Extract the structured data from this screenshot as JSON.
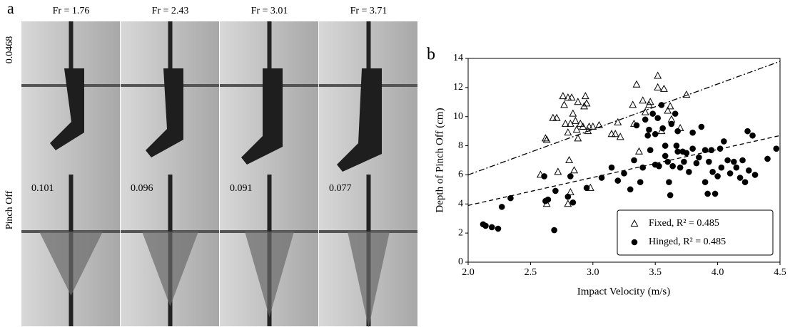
{
  "panel_a": {
    "label": "a",
    "columns": [
      "Fr = 1.76",
      "Fr = 2.43",
      "Fr = 3.01",
      "Fr = 3.71"
    ],
    "rows": [
      "0.0468",
      "Pinch Off"
    ],
    "times": [
      "0.101",
      "0.096",
      "0.091",
      "0.077"
    ]
  },
  "chart_data": {
    "type": "scatter",
    "panel_label": "b",
    "xlabel": "Impact Velocity (m/s)",
    "ylabel": "Depth of Pinch Off (cm)",
    "xlim": [
      2.0,
      4.5
    ],
    "ylim": [
      0,
      14
    ],
    "xticks": [
      {
        "value": 2,
        "label": "2.0"
      },
      {
        "value": 2.5,
        "label": "2.5"
      },
      {
        "value": 3,
        "label": "3.0"
      },
      {
        "value": 3.5,
        "label": "3.5"
      },
      {
        "value": 4,
        "label": "4.0"
      },
      {
        "value": 4.5,
        "label": "4.5"
      }
    ],
    "yticks": [
      0,
      2,
      4,
      6,
      8,
      10,
      12,
      14
    ],
    "legend": "lower right",
    "series": [
      {
        "name": "Fixed, R² = 0.485",
        "marker": "triangle",
        "color": "#000000",
        "x": [
          2.62,
          2.63,
          2.58,
          2.63,
          2.68,
          2.71,
          2.72,
          2.76,
          2.77,
          2.78,
          2.8,
          2.8,
          2.81,
          2.82,
          2.83,
          2.84,
          2.85,
          2.86,
          2.87,
          2.88,
          2.88,
          2.9,
          2.92,
          2.93,
          2.94,
          2.95,
          2.96,
          2.97,
          2.98,
          3.0,
          2.82,
          2.8,
          3.05,
          3.15,
          3.18,
          3.2,
          3.22,
          3.32,
          3.33,
          3.35,
          3.37,
          3.4,
          3.42,
          3.45,
          3.46,
          3.52,
          3.52,
          3.55,
          3.57,
          3.6,
          3.62,
          3.7,
          3.75,
          3.63
        ],
        "values": [
          8.5,
          8.4,
          6.0,
          4.0,
          9.9,
          9.9,
          6.2,
          11.4,
          10.8,
          9.5,
          11.3,
          8.9,
          7.0,
          9.5,
          11.3,
          10.2,
          6.3,
          9.7,
          9.1,
          11.0,
          8.5,
          9.5,
          9.3,
          10.7,
          11.4,
          10.9,
          9.0,
          9.3,
          5.1,
          9.3,
          4.8,
          4.0,
          9.4,
          8.8,
          8.8,
          9.6,
          8.6,
          10.8,
          9.5,
          12.2,
          7.6,
          11.1,
          10.3,
          10.8,
          11.0,
          12.8,
          12.0,
          9.0,
          11.9,
          10.4,
          10.7,
          9.2,
          11.5,
          9.8
        ]
      },
      {
        "name": "Hinged, R² = 0.485",
        "marker": "circle",
        "color": "#000000",
        "x": [
          2.12,
          2.14,
          2.19,
          2.24,
          2.27,
          2.34,
          2.61,
          2.62,
          2.64,
          2.69,
          2.7,
          2.8,
          2.82,
          2.84,
          2.95,
          3.07,
          3.15,
          3.2,
          3.25,
          3.3,
          3.33,
          3.35,
          3.38,
          3.4,
          3.42,
          3.44,
          3.45,
          3.46,
          3.48,
          3.5,
          3.5,
          3.52,
          3.53,
          3.55,
          3.56,
          3.58,
          3.58,
          3.6,
          3.61,
          3.62,
          3.63,
          3.64,
          3.66,
          3.67,
          3.68,
          3.68,
          3.7,
          3.72,
          3.73,
          3.75,
          3.77,
          3.8,
          3.8,
          3.83,
          3.85,
          3.87,
          3.9,
          3.9,
          3.92,
          3.93,
          3.95,
          3.96,
          3.98,
          4.0,
          4.02,
          4.03,
          4.05,
          4.08,
          4.1,
          4.13,
          4.15,
          4.18,
          4.2,
          4.22,
          4.24,
          4.25,
          4.28,
          4.3,
          4.4,
          4.47
        ],
        "values": [
          2.6,
          2.5,
          2.4,
          2.3,
          3.8,
          4.4,
          5.9,
          4.2,
          4.3,
          2.2,
          4.9,
          4.5,
          5.9,
          4.1,
          5.1,
          5.8,
          6.5,
          5.6,
          6.1,
          5.0,
          7.0,
          9.4,
          5.5,
          6.5,
          9.8,
          8.7,
          9.1,
          7.7,
          10.2,
          8.8,
          6.7,
          9.9,
          6.6,
          10.8,
          9.2,
          8.0,
          7.3,
          6.9,
          5.5,
          4.6,
          9.5,
          6.6,
          10.2,
          8.0,
          7.6,
          9.0,
          6.5,
          7.6,
          6.9,
          7.5,
          6.2,
          7.8,
          8.9,
          6.8,
          7.2,
          9.3,
          7.7,
          5.5,
          4.7,
          6.9,
          7.7,
          6.2,
          4.7,
          5.9,
          7.8,
          6.5,
          8.3,
          7.0,
          6.1,
          6.9,
          6.5,
          5.8,
          7.0,
          5.5,
          9.0,
          6.3,
          8.7,
          6.0,
          7.1,
          7.8
        ]
      }
    ],
    "trend_lines": [
      {
        "style": "dashdot",
        "x": [
          2.0,
          4.5
        ],
        "values": [
          6.0,
          13.8
        ]
      },
      {
        "style": "dashed",
        "x": [
          2.0,
          4.5
        ],
        "values": [
          3.9,
          8.7
        ]
      }
    ]
  }
}
